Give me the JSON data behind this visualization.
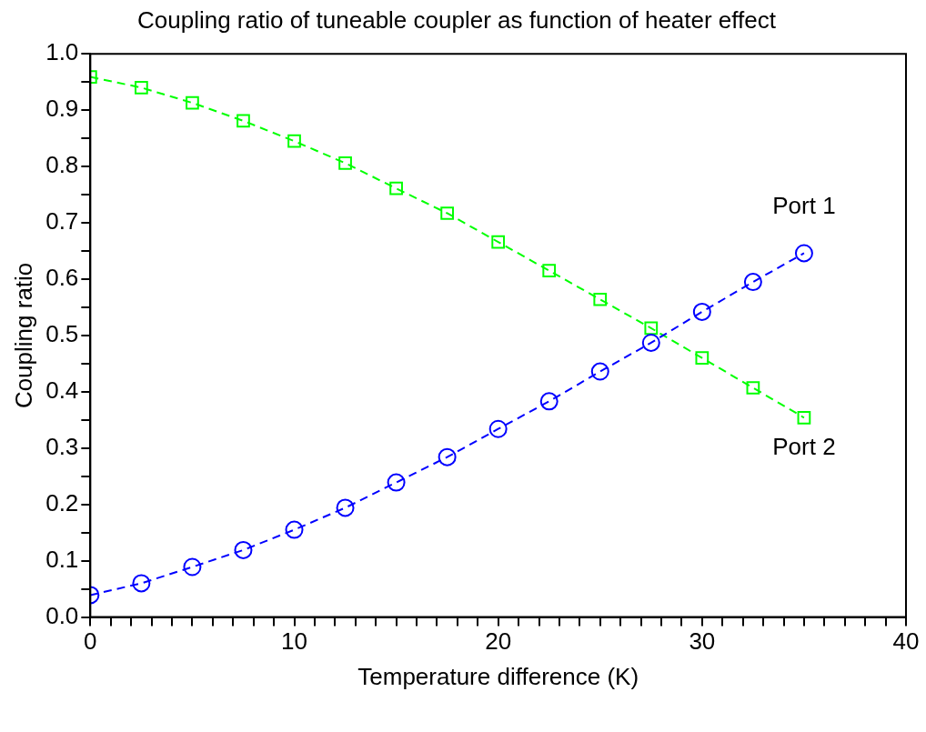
{
  "chart_data": {
    "type": "line",
    "title": "Coupling ratio of tuneable coupler as function of heater effect",
    "xlabel": "Temperature difference (K)",
    "ylabel": "Coupling ratio",
    "x": [
      0,
      2.5,
      5,
      7.5,
      10,
      12.5,
      15,
      17.5,
      20,
      22.5,
      25,
      27.5,
      30,
      32.5,
      35
    ],
    "series": [
      {
        "name": "Port 1",
        "color": "#0000ff",
        "marker": "circle",
        "line_style": "dashed",
        "values": [
          0.039,
          0.06,
          0.089,
          0.119,
          0.155,
          0.194,
          0.239,
          0.284,
          0.334,
          0.383,
          0.436,
          0.487,
          0.542,
          0.595,
          0.646
        ]
      },
      {
        "name": "Port 2",
        "color": "#00ff00",
        "marker": "square",
        "line_style": "dashed",
        "values": [
          0.959,
          0.94,
          0.913,
          0.881,
          0.845,
          0.806,
          0.761,
          0.717,
          0.666,
          0.615,
          0.564,
          0.513,
          0.46,
          0.407,
          0.354
        ]
      }
    ],
    "xlim": [
      0,
      40
    ],
    "ylim": [
      0,
      1
    ],
    "xticks": [
      0,
      {
        "value": 1,
        "label": null
      },
      {
        "value": 2,
        "label": null
      },
      {
        "value": 3,
        "label": null
      },
      {
        "value": 4,
        "label": null
      },
      {
        "value": 5,
        "label": null
      },
      {
        "value": 6,
        "label": null
      },
      {
        "value": 7,
        "label": null
      },
      {
        "value": 8,
        "label": null
      },
      {
        "value": 9,
        "label": null
      },
      10,
      {
        "value": 11,
        "label": null
      },
      {
        "value": 12,
        "label": null
      },
      {
        "value": 13,
        "label": null
      },
      {
        "value": 14,
        "label": null
      },
      {
        "value": 15,
        "label": null
      },
      {
        "value": 16,
        "label": null
      },
      {
        "value": 17,
        "label": null
      },
      {
        "value": 18,
        "label": null
      },
      {
        "value": 19,
        "label": null
      },
      20,
      {
        "value": 21,
        "label": null
      },
      {
        "value": 22,
        "label": null
      },
      {
        "value": 23,
        "label": null
      },
      {
        "value": 24,
        "label": null
      },
      {
        "value": 25,
        "label": null
      },
      {
        "value": 26,
        "label": null
      },
      {
        "value": 27,
        "label": null
      },
      {
        "value": 28,
        "label": null
      },
      {
        "value": 29,
        "label": null
      },
      30,
      {
        "value": 31,
        "label": null
      },
      {
        "value": 32,
        "label": null
      },
      {
        "value": 33,
        "label": null
      },
      {
        "value": 34,
        "label": null
      },
      {
        "value": 35,
        "label": null
      },
      {
        "value": 36,
        "label": null
      },
      {
        "value": 37,
        "label": null
      },
      {
        "value": 38,
        "label": null
      },
      {
        "value": 39,
        "label": null
      },
      40
    ],
    "yticks": [
      {
        "value": 0,
        "label": "0.0"
      },
      {
        "value": 0.05,
        "label": null
      },
      0.1,
      {
        "value": 0.15,
        "label": null
      },
      0.2,
      {
        "value": 0.25,
        "label": null
      },
      0.3,
      {
        "value": 0.35,
        "label": null
      },
      0.4,
      {
        "value": 0.45,
        "label": null
      },
      0.5,
      {
        "value": 0.55,
        "label": null
      },
      0.6,
      {
        "value": 0.65,
        "label": null
      },
      0.7,
      {
        "value": 0.75,
        "label": null
      },
      0.8,
      {
        "value": 0.85,
        "label": null
      },
      0.9,
      {
        "value": 0.95,
        "label": null
      },
      {
        "value": 1,
        "label": "1.0"
      }
    ],
    "grid": false,
    "legend": false
  }
}
